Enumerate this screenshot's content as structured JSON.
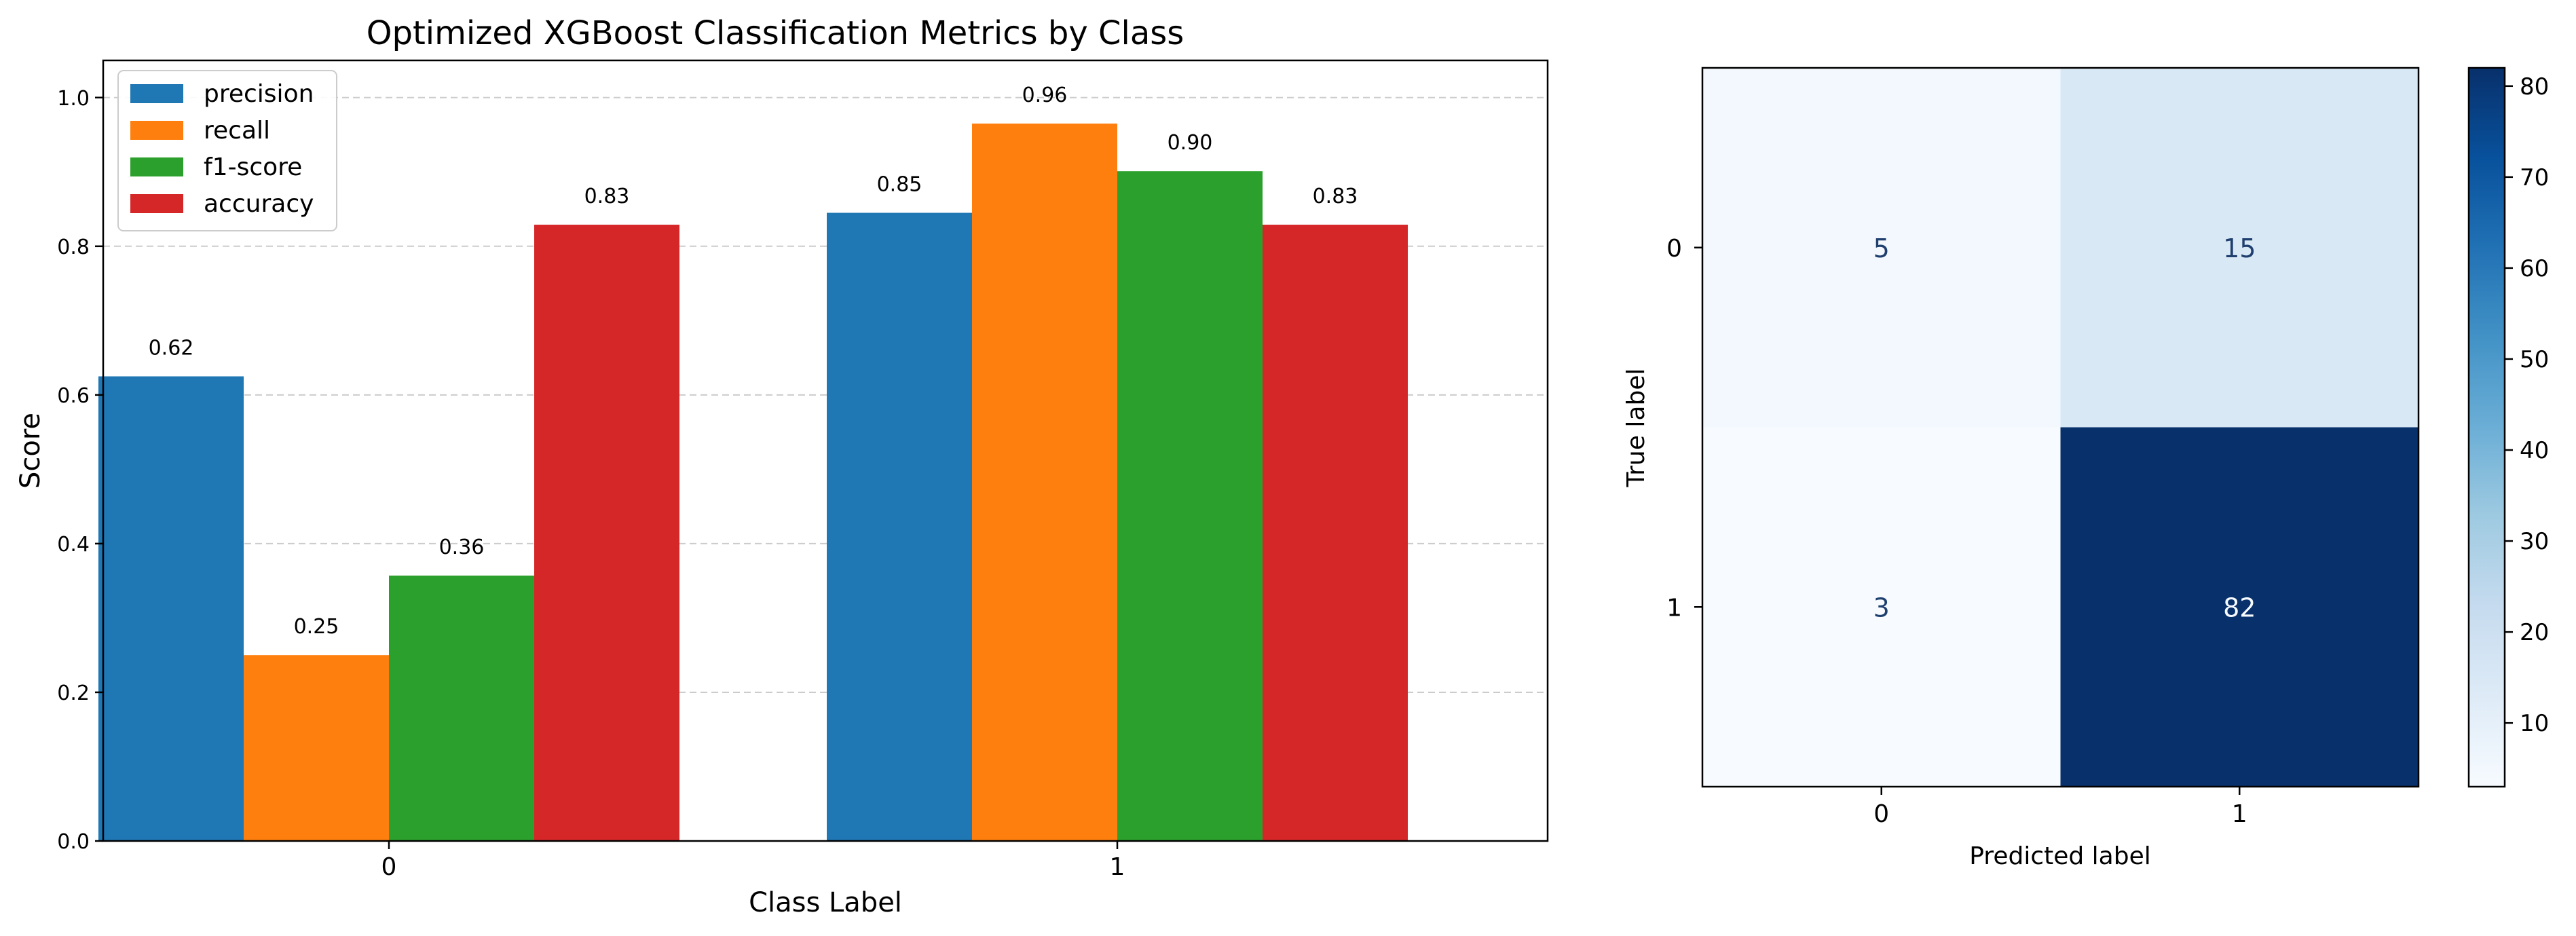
{
  "chart_data": [
    {
      "type": "bar",
      "title": "Optimized XGBoost Classification Metrics by Class",
      "xlabel": "Class Label",
      "ylabel": "Score",
      "categories": [
        "0",
        "1"
      ],
      "ylim": [
        0,
        1.05
      ],
      "yticks": [
        "0.0",
        "0.2",
        "0.4",
        "0.6",
        "0.8",
        "1.0"
      ],
      "grid": "horizontal dashed",
      "legend_position": "top-left",
      "series": [
        {
          "name": "precision",
          "color": "#1f77b4",
          "values": [
            0.625,
            0.845
          ],
          "labels": [
            "0.62",
            "0.85"
          ]
        },
        {
          "name": "recall",
          "color": "#ff7f0e",
          "values": [
            0.25,
            0.965
          ],
          "labels": [
            "0.25",
            "0.96"
          ]
        },
        {
          "name": "f1-score",
          "color": "#2ca02c",
          "values": [
            0.357,
            0.901
          ],
          "labels": [
            "0.36",
            "0.90"
          ]
        },
        {
          "name": "accuracy",
          "color": "#d62728",
          "values": [
            0.829,
            0.829
          ],
          "labels": [
            "0.83",
            "0.83"
          ]
        }
      ]
    },
    {
      "type": "heatmap",
      "xlabel": "Predicted label",
      "ylabel": "True label",
      "x_categories": [
        "0",
        "1"
      ],
      "y_categories": [
        "0",
        "1"
      ],
      "values": [
        [
          5,
          15
        ],
        [
          3,
          82
        ]
      ],
      "colormap": "Blues",
      "colorbar_range": [
        3,
        82
      ],
      "colorbar_ticks": [
        "10",
        "20",
        "30",
        "40",
        "50",
        "60",
        "70",
        "80"
      ]
    }
  ]
}
